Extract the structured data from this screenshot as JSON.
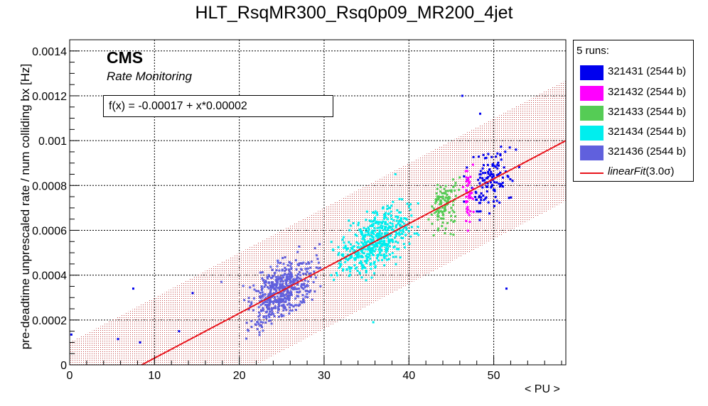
{
  "chart_data": {
    "type": "scatter",
    "title": "HLT_RsqMR300_Rsq0p09_MR200_4jet",
    "xlabel": "< PU >",
    "ylabel": "pre-deadtime unprescaled rate / num colliding bx [Hz]",
    "xlim": [
      0,
      58.5
    ],
    "ylim": [
      0,
      0.00145
    ],
    "x_ticks": [
      0,
      10,
      20,
      30,
      40,
      50
    ],
    "y_ticks": [
      0,
      0.0002,
      0.0004,
      0.0006,
      0.0008,
      0.001,
      0.0012,
      0.0014
    ],
    "y_tick_labels": [
      "0",
      "0.0002",
      "0.0004",
      "0.0006",
      "0.0008",
      "0.001",
      "0.0012",
      "0.0014"
    ],
    "grid": true,
    "legend_position": "right, outside plot",
    "legend_header": "5 runs:",
    "annotations": {
      "cms": "CMS",
      "subtitle": "Rate Monitoring",
      "fit_formula": "f(x) = -0.00017 + x*0.00002"
    },
    "fit": {
      "name": "linearFit",
      "label_suffix": "(3.0σ)",
      "intercept": -0.00017,
      "slope": 2e-05,
      "band_offset": 0.00027,
      "color": "#e8141c",
      "band_color": "#c04040"
    },
    "series": [
      {
        "name": "321431 (2544 b)",
        "color": "#0000ee",
        "x_center": 49.5,
        "x_spread": 2.3,
        "n": 130,
        "x_range": [
          46.5,
          53.0
        ]
      },
      {
        "name": "321432 (2544 b)",
        "color": "#ff00ff",
        "x_center": 47.0,
        "x_spread": 0.45,
        "n": 45,
        "x_range": [
          46.2,
          47.8
        ]
      },
      {
        "name": "321433 (2544 b)",
        "color": "#55cc55",
        "x_center": 44.2,
        "x_spread": 1.2,
        "n": 110,
        "x_range": [
          42.3,
          46.4
        ]
      },
      {
        "name": "321434 (2544 b)",
        "color": "#00eeee",
        "x_center": 36.0,
        "x_spread": 3.4,
        "n": 520,
        "x_range": [
          30.0,
          42.5
        ]
      },
      {
        "name": "321436 (2544 b)",
        "color": "#6060dd",
        "x_center": 25.0,
        "x_spread": 3.0,
        "n": 520,
        "x_range": [
          20.0,
          30.0
        ]
      }
    ],
    "outliers": [
      {
        "x": 0.2,
        "y": 0.000135,
        "series": 0
      },
      {
        "x": 7.5,
        "y": 0.00034,
        "series": 0
      },
      {
        "x": 14.5,
        "y": 0.00032,
        "series": 0
      },
      {
        "x": 5.7,
        "y": 0.000115,
        "series": 0
      },
      {
        "x": 12.9,
        "y": 0.00015,
        "series": 0
      },
      {
        "x": 8.3,
        "y": 0.0001,
        "series": 0
      },
      {
        "x": 51.5,
        "y": 0.00034,
        "series": 0
      },
      {
        "x": 46.3,
        "y": 0.0012,
        "series": 0
      },
      {
        "x": 48.4,
        "y": 0.00112,
        "series": 0
      },
      {
        "x": 35.8,
        "y": 0.00019,
        "series": 3
      },
      {
        "x": 38.4,
        "y": 0.00085,
        "series": 3
      },
      {
        "x": 17.9,
        "y": 0.00037,
        "series": 4
      }
    ]
  }
}
